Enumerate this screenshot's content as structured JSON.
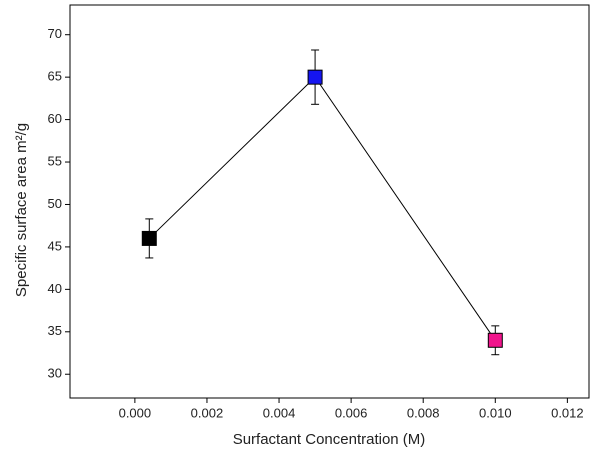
{
  "chart_data": {
    "type": "line",
    "xlabel": "Surfactant Concentration (M)",
    "ylabel": "Specific surface area m²/g",
    "series": [
      {
        "color": "#000000",
        "x": [
          0.0004,
          0.005,
          0.01
        ],
        "values": [
          46,
          65,
          34
        ],
        "errors": [
          2.3,
          3.2,
          1.7
        ],
        "marker_colors": [
          "#000000",
          "#1515f0",
          "#f0148c"
        ]
      }
    ],
    "xlim": [
      -0.0018,
      0.0126
    ],
    "ylim": [
      27.2,
      73.5
    ],
    "xticks": [
      {
        "value": 0.0,
        "label": "0.000"
      },
      {
        "value": 0.002,
        "label": "0.002"
      },
      {
        "value": 0.004,
        "label": "0.004"
      },
      {
        "value": 0.006,
        "label": "0.006"
      },
      {
        "value": 0.008,
        "label": "0.008"
      },
      {
        "value": 0.01,
        "label": "0.010"
      },
      {
        "value": 0.012,
        "label": "0.012"
      }
    ],
    "yticks": [
      30,
      35,
      40,
      45,
      50,
      55,
      60,
      65,
      70
    ]
  }
}
